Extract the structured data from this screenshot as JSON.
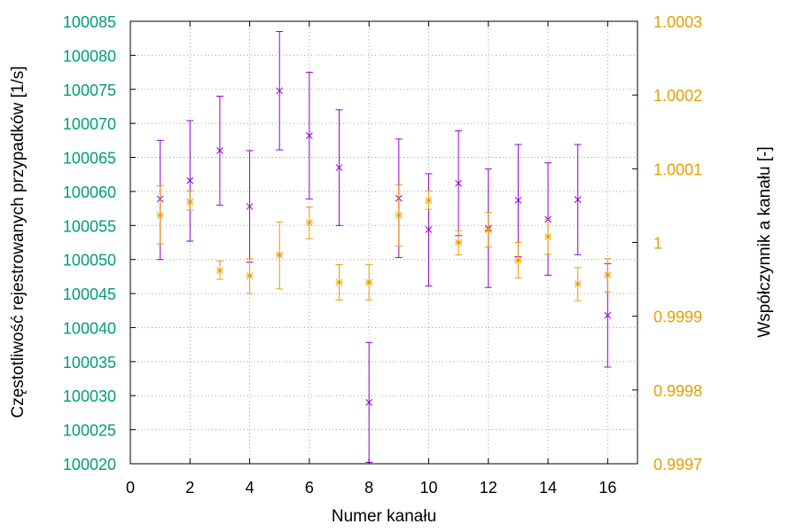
{
  "chart_data": {
    "type": "scatter",
    "xlabel": "Numer kanału",
    "ylabel": "Częstotliwość rejestrowanych przypadków [1/s]",
    "y2label": "Współczynnik a kanału [-]",
    "xlim": [
      0,
      17
    ],
    "xticks": [
      0,
      2,
      4,
      6,
      8,
      10,
      12,
      14,
      16
    ],
    "ylim": [
      100020,
      100085
    ],
    "yticks": [
      100020,
      100025,
      100030,
      100035,
      100040,
      100045,
      100050,
      100055,
      100060,
      100065,
      100070,
      100075,
      100080,
      100085
    ],
    "y2lim": [
      0.9997,
      1.0003
    ],
    "y2ticks": [
      "0.9997",
      "0.9998",
      "0.9999",
      "1",
      "1.0001",
      "1.0002",
      "1.0003"
    ],
    "grid": true,
    "legend": "none",
    "series": [
      {
        "axis": "left",
        "marker": "x",
        "color": "#9400d3",
        "x": [
          1,
          2,
          3,
          4,
          5,
          6,
          7,
          8,
          9,
          10,
          11,
          12,
          13,
          14,
          15,
          16
        ],
        "y": [
          100058.9,
          100061.6,
          100066.0,
          100057.8,
          100074.8,
          100068.2,
          100063.5,
          100029.0,
          100059.0,
          100054.4,
          100061.2,
          100054.6,
          100058.7,
          100055.9,
          100058.8,
          100041.8
        ],
        "err_low": [
          100050.0,
          100052.7,
          100058.0,
          100049.6,
          100066.1,
          100058.9,
          100055.0,
          100020.2,
          100050.3,
          100046.1,
          100053.5,
          100045.9,
          100050.4,
          100047.7,
          100050.7,
          100034.2
        ],
        "err_high": [
          100067.5,
          100070.4,
          100074.0,
          100066.0,
          100083.5,
          100077.5,
          100072.0,
          100037.8,
          100067.7,
          100062.6,
          100068.9,
          100063.3,
          100066.9,
          100064.2,
          100066.9,
          100049.4
        ]
      },
      {
        "axis": "right",
        "marker": "star",
        "color": "#e69f00",
        "x": [
          1,
          2,
          3,
          4,
          5,
          6,
          7,
          8,
          9,
          10,
          11,
          12,
          13,
          14,
          15,
          16
        ],
        "y": [
          1.000037,
          1.000055,
          0.999962,
          0.999955,
          0.999983,
          1.000027,
          0.999946,
          0.999946,
          1.000037,
          1.000057,
          1.0,
          1.000017,
          0.999976,
          1.000008,
          0.999944,
          0.999956
        ],
        "err_low": [
          0.999998,
          1.000044,
          0.99995,
          0.999931,
          0.999937,
          1.000005,
          0.999922,
          0.999922,
          0.999995,
          1.000045,
          0.999983,
          0.999994,
          0.999952,
          0.999984,
          0.999921,
          0.999933
        ],
        "err_high": [
          1.000077,
          1.00007,
          0.999975,
          0.999978,
          1.000028,
          1.000048,
          0.99997,
          0.99997,
          1.000078,
          1.00007,
          1.000016,
          1.000041,
          1.0,
          1.000031,
          0.999966,
          0.999978
        ]
      }
    ]
  },
  "colors": {
    "left_axis_text": "#009e73",
    "right_axis_text": "#e69f00",
    "series_left": "#9400d3",
    "series_right": "#e69f00"
  }
}
